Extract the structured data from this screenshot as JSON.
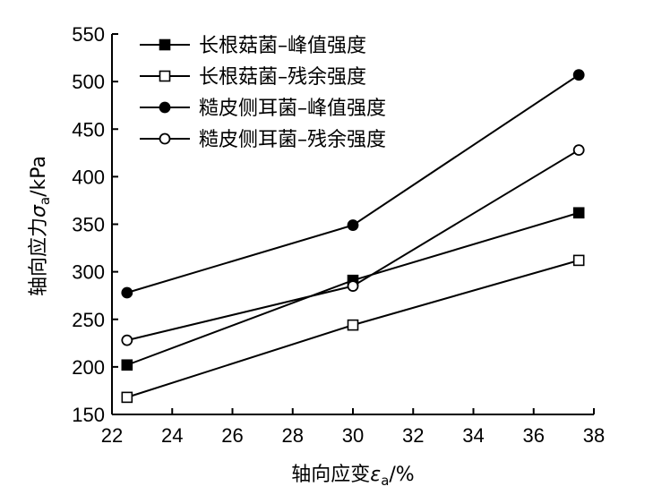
{
  "chart_data": {
    "type": "line",
    "xlabel_main": "轴向应变",
    "xlabel_symbol": "ε",
    "xlabel_sub": "a",
    "xlabel_unit": "/%",
    "ylabel_main": "轴向应力",
    "ylabel_symbol": "σ",
    "ylabel_sub": "a",
    "ylabel_unit": "/kPa",
    "xlim": [
      22,
      38
    ],
    "ylim": [
      150,
      550
    ],
    "xticks": [
      "22",
      "24",
      "26",
      "28",
      "30",
      "32",
      "34",
      "36",
      "38"
    ],
    "yticks": [
      "150",
      "200",
      "250",
      "300",
      "350",
      "400",
      "450",
      "500",
      "550"
    ],
    "x": [
      22.5,
      30,
      37.5
    ],
    "legend_position": "top-left",
    "series": [
      {
        "name": "长根菇菌–峰值强度",
        "marker": "square-filled",
        "values": [
          202,
          291,
          362
        ]
      },
      {
        "name": "长根菇菌–残余强度",
        "marker": "square-open",
        "values": [
          168,
          244,
          312
        ]
      },
      {
        "name": "糙皮侧耳菌–峰值强度",
        "marker": "circle-filled",
        "values": [
          278,
          349,
          507
        ]
      },
      {
        "name": "糙皮侧耳菌–残余强度",
        "marker": "circle-open",
        "values": [
          228,
          285,
          428
        ]
      }
    ]
  }
}
